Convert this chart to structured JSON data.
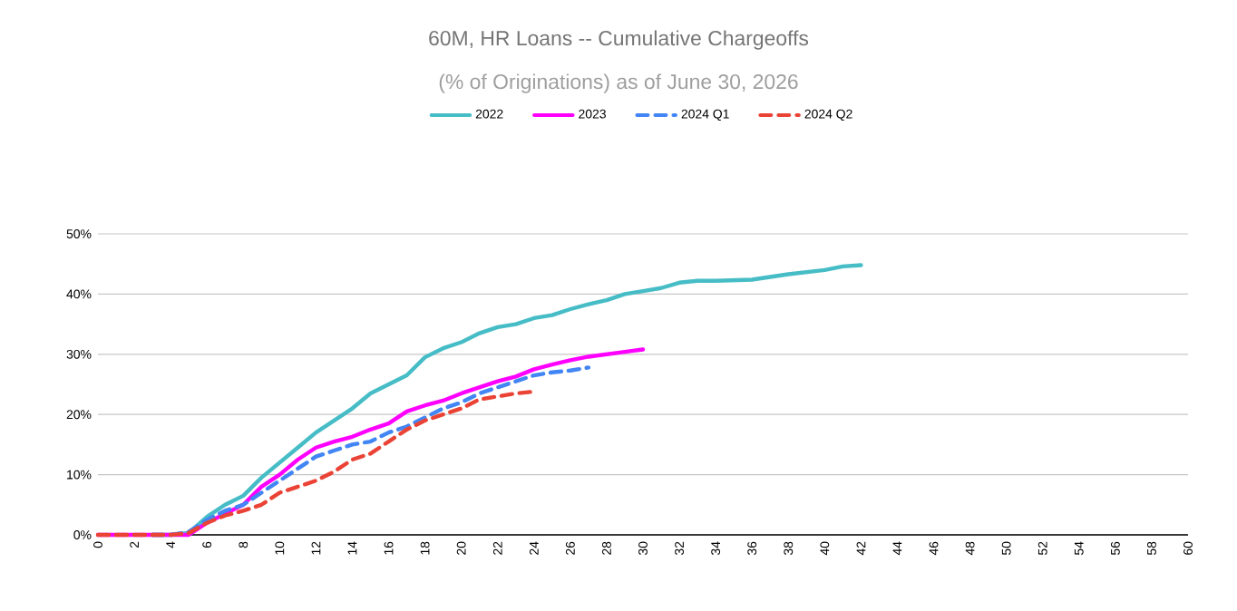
{
  "chart_data": {
    "type": "line",
    "title": "60M, HR Loans -- Cumulative Chargeoffs",
    "subtitle": "(% of Originations) as of June 30, 2026",
    "xlim": [
      0,
      60
    ],
    "xticks": [
      0,
      2,
      4,
      6,
      8,
      10,
      12,
      14,
      16,
      18,
      20,
      22,
      24,
      26,
      28,
      30,
      32,
      34,
      36,
      38,
      40,
      42,
      44,
      46,
      48,
      50,
      52,
      54,
      56,
      58,
      60
    ],
    "ylim": [
      0,
      50
    ],
    "yticks": [
      {
        "value": 0,
        "label": "0%"
      },
      {
        "value": 10,
        "label": "10%"
      },
      {
        "value": 20,
        "label": "20%"
      },
      {
        "value": 30,
        "label": "30%"
      },
      {
        "value": 40,
        "label": "40%"
      },
      {
        "value": 50,
        "label": "50%"
      }
    ],
    "grid": "y",
    "legend": "top",
    "series": [
      {
        "name": "2022",
        "color": "#46bdc6",
        "line_style": "solid",
        "x": [
          3,
          4,
          5,
          6,
          7,
          8,
          9,
          10,
          11,
          12,
          13,
          14,
          15,
          16,
          17,
          18,
          19,
          20,
          21,
          22,
          23,
          24,
          25,
          26,
          27,
          28,
          29,
          30,
          31,
          32,
          33,
          34,
          36,
          38,
          40,
          41,
          42
        ],
        "values": [
          0,
          0,
          0.3,
          3,
          5,
          6.5,
          9.5,
          12,
          14.5,
          17,
          19,
          21,
          23.5,
          25,
          26.5,
          29.5,
          31,
          32,
          33.5,
          34.5,
          35,
          36,
          36.5,
          37.5,
          38.3,
          39,
          40,
          40.5,
          41,
          41.9,
          42.2,
          42.2,
          42.4,
          43.3,
          44,
          44.6,
          44.8
        ]
      },
      {
        "name": "2023",
        "color": "#ff00ff",
        "line_style": "solid",
        "x": [
          0,
          1,
          2,
          3,
          4,
          5,
          6,
          7,
          8,
          9,
          10,
          11,
          12,
          13,
          14,
          15,
          16,
          17,
          18,
          19,
          20,
          21,
          22,
          23,
          24,
          25,
          26,
          27,
          28,
          29,
          30
        ],
        "values": [
          0,
          0,
          0,
          0,
          0,
          0,
          2,
          3.5,
          5,
          8,
          10,
          12.5,
          14.5,
          15.5,
          16.3,
          17.5,
          18.5,
          20.5,
          21.5,
          22.3,
          23.5,
          24.5,
          25.5,
          26.3,
          27.5,
          28.3,
          29,
          29.6,
          30,
          30.4,
          30.8
        ]
      },
      {
        "name": "2024 Q1",
        "color": "#4285f4",
        "line_style": "dashed",
        "x": [
          3,
          4,
          5,
          6,
          7,
          8,
          9,
          10,
          11,
          12,
          13,
          14,
          15,
          16,
          17,
          18,
          19,
          20,
          21,
          22,
          23,
          24,
          25,
          26,
          27
        ],
        "values": [
          0,
          0,
          0.5,
          2.5,
          4,
          5,
          7,
          9,
          11,
          13,
          14,
          15,
          15.5,
          17,
          18,
          19.5,
          21,
          22,
          23.5,
          24.5,
          25.5,
          26.5,
          27,
          27.3,
          27.8
        ]
      },
      {
        "name": "2024 Q2",
        "color": "#ea4335",
        "line_style": "dashed",
        "x": [
          0,
          1,
          2,
          3,
          4,
          5,
          6,
          7,
          8,
          9,
          10,
          11,
          12,
          13,
          14,
          15,
          16,
          17,
          18,
          19,
          20,
          21,
          22,
          23,
          24
        ],
        "values": [
          0,
          0,
          0,
          0,
          0,
          0.3,
          2,
          3.2,
          4,
          5,
          7,
          8,
          9,
          10.5,
          12.5,
          13.5,
          15.5,
          17.5,
          19,
          20,
          21,
          22.5,
          23,
          23.5,
          23.8
        ]
      }
    ]
  }
}
